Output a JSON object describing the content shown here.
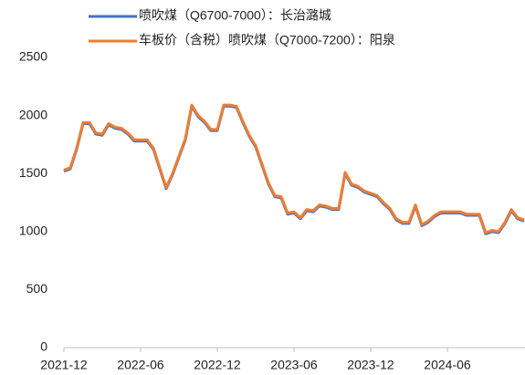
{
  "chart_data": {
    "type": "line",
    "categories": [
      "2021-12",
      null,
      null,
      null,
      null,
      null,
      null,
      null,
      null,
      null,
      null,
      null,
      "2022-06",
      null,
      null,
      null,
      null,
      null,
      null,
      null,
      null,
      null,
      null,
      null,
      "2022-12",
      null,
      null,
      null,
      null,
      null,
      null,
      null,
      null,
      null,
      null,
      null,
      "2023-06",
      null,
      null,
      null,
      null,
      null,
      null,
      null,
      null,
      null,
      null,
      null,
      "2023-12",
      null,
      null,
      null,
      null,
      null,
      null,
      null,
      null,
      null,
      null,
      null,
      "2024-06",
      null,
      null,
      null,
      null,
      null,
      null,
      null,
      null,
      null,
      null,
      null,
      null
    ],
    "series": [
      {
        "name": "喷吹煤（Q6700-7000）：长治潞城",
        "color": "#4472c4",
        "values": [
          1520,
          1540,
          1710,
          1930,
          1930,
          1840,
          1830,
          1920,
          1890,
          1880,
          1840,
          1780,
          1780,
          1780,
          1710,
          1540,
          1370,
          1490,
          1640,
          1790,
          2080,
          1990,
          1940,
          1870,
          1870,
          2080,
          2080,
          2070,
          1940,
          1820,
          1730,
          1570,
          1410,
          1300,
          1290,
          1150,
          1160,
          1110,
          1180,
          1170,
          1220,
          1210,
          1190,
          1190,
          1500,
          1400,
          1380,
          1340,
          1320,
          1300,
          1240,
          1190,
          1100,
          1070,
          1070,
          1220,
          1050,
          1080,
          1130,
          1160,
          1160,
          1160,
          1160,
          1140,
          1140,
          1140,
          980,
          1000,
          990,
          1070,
          1180,
          1110,
          1090
        ]
      },
      {
        "name": "车板价（含税）喷吹煤（Q7000-7200）：阳泉",
        "color": "#ed7d31",
        "values": [
          1530,
          1550,
          1720,
          1940,
          1940,
          1850,
          1840,
          1930,
          1900,
          1890,
          1850,
          1790,
          1790,
          1790,
          1720,
          1550,
          1380,
          1500,
          1650,
          1800,
          2090,
          2000,
          1950,
          1880,
          1880,
          2090,
          2090,
          2080,
          1950,
          1830,
          1740,
          1580,
          1420,
          1310,
          1300,
          1160,
          1170,
          1120,
          1190,
          1180,
          1230,
          1220,
          1200,
          1200,
          1510,
          1410,
          1390,
          1350,
          1330,
          1310,
          1250,
          1200,
          1110,
          1080,
          1080,
          1230,
          1060,
          1090,
          1140,
          1170,
          1170,
          1170,
          1170,
          1150,
          1150,
          1150,
          990,
          1010,
          1000,
          1080,
          1190,
          1120,
          1100
        ]
      }
    ],
    "ylim": [
      0,
      2500
    ],
    "yticks": [
      0,
      500,
      1000,
      1500,
      2000,
      2500
    ]
  }
}
